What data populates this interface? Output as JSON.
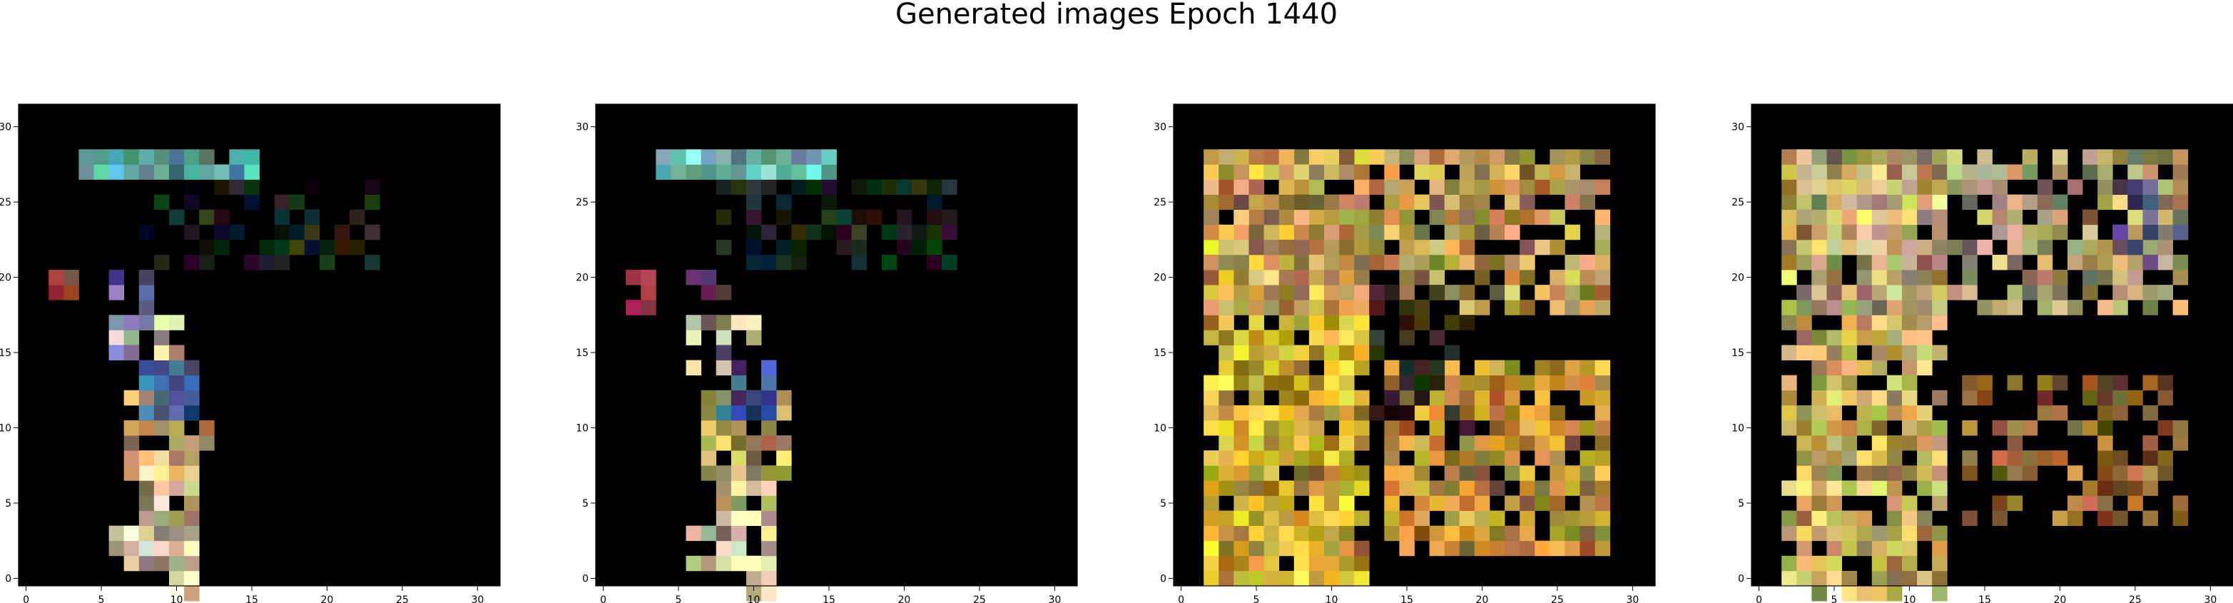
{
  "chart_data": [
    {
      "type": "heatmap",
      "title": "",
      "xlim": [
        -0.5,
        31.5
      ],
      "ylim": [
        31.5,
        -0.5
      ],
      "xticks": [
        0,
        5,
        10,
        15,
        20,
        25,
        30
      ],
      "yticks": [
        0,
        5,
        10,
        15,
        20,
        25,
        30
      ],
      "xticklabels": [
        "0",
        "5",
        "10",
        "15",
        "20",
        "25",
        "30"
      ],
      "yticklabels": [
        "0",
        "5",
        "10",
        "15",
        "20",
        "25",
        "30"
      ],
      "background": "#000000",
      "grid": false,
      "description": "Sparse generated 32x32 image: a thin vertical pastel/yellow stroke around columns 7-12 from row 0 to 21, small red/green specks near rows 20-21 at columns 2-3, faint dim blocks in the lower middle, and a bright cyan/green horizontal band along row 28 at columns 4-15.",
      "strokes": [
        {
          "r0": 0,
          "r1": 2,
          "c0": 10,
          "c1": 11,
          "color": "#f2e7c2",
          "p": 0.9
        },
        {
          "r0": 2,
          "r1": 4,
          "c0": 6,
          "c1": 11,
          "color": "#e5dfb5",
          "p": 0.75
        },
        {
          "r0": 4,
          "r1": 8,
          "c0": 8,
          "c1": 11,
          "color": "#f0e0a8",
          "p": 0.8
        },
        {
          "r0": 8,
          "r1": 13,
          "c0": 7,
          "c1": 12,
          "color": "#e8c87a",
          "p": 0.75
        },
        {
          "r0": 12,
          "r1": 15,
          "c0": 8,
          "c1": 11,
          "color": "#4b6aa8",
          "p": 0.7
        },
        {
          "r0": 15,
          "r1": 18,
          "c0": 6,
          "c1": 10,
          "color": "#dfe0b0",
          "p": 0.5
        },
        {
          "r0": 16,
          "r1": 21,
          "c0": 6,
          "c1": 8,
          "color": "#7a6fb0",
          "p": 0.55
        },
        {
          "r0": 20,
          "r1": 21,
          "c0": 2,
          "c1": 3,
          "color": "#b34a3a",
          "p": 0.9
        },
        {
          "r0": 22,
          "r1": 27,
          "c0": 8,
          "c1": 23,
          "color": "#1f2a22",
          "p": 0.5
        },
        {
          "r0": 28,
          "r1": 29,
          "c0": 4,
          "c1": 15,
          "color": "#6fc8c0",
          "p": 0.95
        }
      ]
    },
    {
      "type": "heatmap",
      "title": "",
      "xlim": [
        -0.5,
        31.5
      ],
      "ylim": [
        31.5,
        -0.5
      ],
      "xticks": [
        0,
        5,
        10,
        15,
        20,
        25,
        30
      ],
      "yticks": [
        0,
        5,
        10,
        15,
        20,
        25,
        30
      ],
      "xticklabels": [
        "0",
        "5",
        "10",
        "15",
        "20",
        "25",
        "30"
      ],
      "yticklabels": [
        "0",
        "5",
        "10",
        "15",
        "20",
        "25",
        "30"
      ],
      "background": "#000000",
      "grid": false,
      "description": "Similar to the first panel: thin pastel vertical stroke near columns 7-12, red/green specks at rows 19-21 columns 2-3, dim scattered blocks lower middle, cyan/green band along row 28 at columns 4-15.",
      "strokes": [
        {
          "r0": 0,
          "r1": 2,
          "c0": 10,
          "c1": 11,
          "color": "#e6d6a8",
          "p": 0.9
        },
        {
          "r0": 2,
          "r1": 4,
          "c0": 6,
          "c1": 11,
          "color": "#dcd6a8",
          "p": 0.75
        },
        {
          "r0": 4,
          "r1": 8,
          "c0": 8,
          "c1": 11,
          "color": "#ecd89c",
          "p": 0.8
        },
        {
          "r0": 8,
          "r1": 13,
          "c0": 7,
          "c1": 12,
          "color": "#e0c07a",
          "p": 0.75
        },
        {
          "r0": 12,
          "r1": 15,
          "c0": 8,
          "c1": 11,
          "color": "#4b6aa8",
          "p": 0.7
        },
        {
          "r0": 15,
          "r1": 18,
          "c0": 6,
          "c1": 10,
          "color": "#e7e2b0",
          "p": 0.5
        },
        {
          "r0": 16,
          "r1": 21,
          "c0": 6,
          "c1": 8,
          "color": "#5a3f6a",
          "p": 0.55
        },
        {
          "r0": 19,
          "r1": 21,
          "c0": 2,
          "c1": 3,
          "color": "#a0304a",
          "p": 0.85
        },
        {
          "r0": 22,
          "r1": 27,
          "c0": 8,
          "c1": 23,
          "color": "#1e2a26",
          "p": 0.5
        },
        {
          "r0": 28,
          "r1": 29,
          "c0": 4,
          "c1": 15,
          "color": "#7fd0c8",
          "p": 0.95
        }
      ]
    },
    {
      "type": "heatmap",
      "title": "",
      "xlim": [
        -0.5,
        31.5
      ],
      "ylim": [
        31.5,
        -0.5
      ],
      "xticks": [
        0,
        5,
        10,
        15,
        20,
        25,
        30
      ],
      "yticks": [
        0,
        5,
        10,
        15,
        20,
        25,
        30
      ],
      "xticklabels": [
        "0",
        "5",
        "10",
        "15",
        "20",
        "25",
        "30"
      ],
      "yticklabels": [
        "0",
        "5",
        "10",
        "15",
        "20",
        "25",
        "30"
      ],
      "background": "#000000",
      "grid": false,
      "description": "Dense generated 32x32 image filled with bright yellow/orange/beige blocks: a wide vertical mass at columns 2-12 spanning rows 1-29, an upper-right mass at columns 14-28 rows 3-15, and a lower horizontal band at columns 2-28 rows 19-29, with scattered dark holes.",
      "strokes": [
        {
          "r0": 1,
          "r1": 29,
          "c0": 2,
          "c1": 12,
          "color": "#efcb3c",
          "p": 0.88
        },
        {
          "r0": 3,
          "r1": 15,
          "c0": 14,
          "c1": 28,
          "color": "#e2a940",
          "p": 0.82
        },
        {
          "r0": 19,
          "r1": 29,
          "c0": 2,
          "c1": 28,
          "color": "#d8b060",
          "p": 0.8
        },
        {
          "r0": 11,
          "r1": 20,
          "c0": 13,
          "c1": 19,
          "color": "#3a3420",
          "p": 0.45
        }
      ]
    },
    {
      "type": "heatmap",
      "title": "",
      "xlim": [
        -0.5,
        31.5
      ],
      "ylim": [
        31.5,
        -0.5
      ],
      "xticks": [
        0,
        5,
        10,
        15,
        20,
        25,
        30
      ],
      "yticks": [
        0,
        5,
        10,
        15,
        20,
        25,
        30
      ],
      "xticklabels": [
        "0",
        "5",
        "10",
        "15",
        "20",
        "25",
        "30"
      ],
      "yticklabels": [
        "0",
        "5",
        "10",
        "15",
        "20",
        "25",
        "30"
      ],
      "background": "#000000",
      "grid": false,
      "description": "Moderately dense generated 32x32 image: a vertical yellow/beige stroke at columns 2-12 from row 0 to 29, a dimmer upper-right cluster at columns 14-28 rows 5-14, and a lower band at columns 3-28 rows 19-29 in muted yellow/green/purple tones.",
      "strokes": [
        {
          "r0": 0,
          "r1": 29,
          "c0": 2,
          "c1": 12,
          "color": "#e8cf70",
          "p": 0.78
        },
        {
          "r0": 5,
          "r1": 14,
          "c0": 14,
          "c1": 28,
          "color": "#b07a3a",
          "p": 0.6
        },
        {
          "r0": 19,
          "r1": 29,
          "c0": 3,
          "c1": 28,
          "color": "#c8b480",
          "p": 0.75
        },
        {
          "r0": 22,
          "r1": 27,
          "c0": 23,
          "c1": 28,
          "color": "#6a5a8a",
          "p": 0.5
        }
      ]
    }
  ],
  "figure": {
    "title": "Generated images Epoch 1440"
  }
}
